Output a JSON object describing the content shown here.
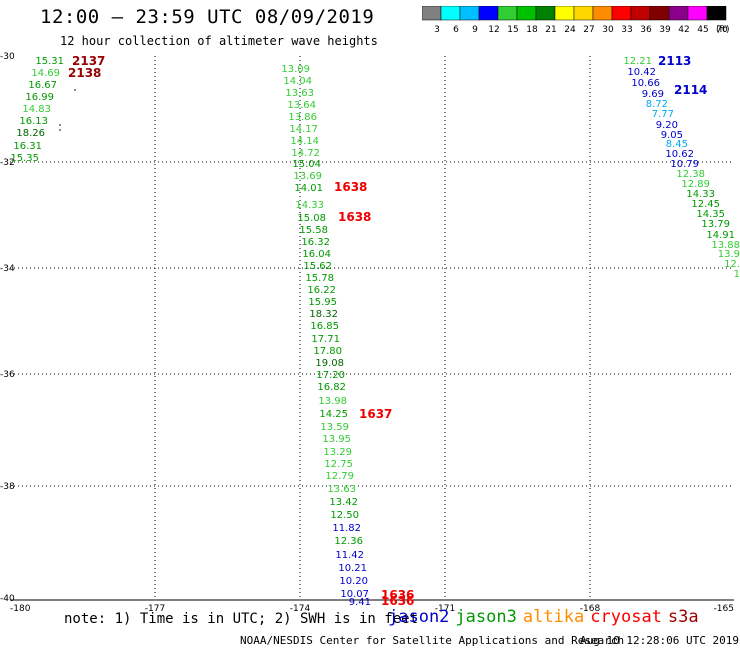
{
  "title": "12:00 — 23:59 UTC 08/09/2019",
  "subtitle": "12 hour collection of altimeter wave heights",
  "units_label": "(ft)",
  "colorbar": {
    "labels": [
      "3",
      "6",
      "9",
      "12",
      "15",
      "18",
      "21",
      "24",
      "27",
      "30",
      "33",
      "36",
      "39",
      "42",
      "45",
      "70"
    ],
    "colors": [
      "#808080",
      "#00ffff",
      "#00bfff",
      "#0000ff",
      "#32cd32",
      "#00c000",
      "#008000",
      "#ffff00",
      "#ffd700",
      "#ff8c00",
      "#ff0000",
      "#c00000",
      "#800000",
      "#8b008b",
      "#ff00ff",
      "#000000"
    ]
  },
  "axes": {
    "x_ticks": [
      "-180",
      "-177",
      "-174",
      "-171",
      "-168",
      "-165"
    ],
    "y_ticks": [
      "-30",
      "-32",
      "-34",
      "-36",
      "-38",
      "-40"
    ]
  },
  "tracks": [
    {
      "name": "track-left",
      "times": [
        "2137",
        "2138"
      ],
      "labels": [
        "15.31",
        "14.69",
        "16.67",
        "16.99",
        "14.83",
        "16.13",
        "18.26",
        "16.31",
        "15.35"
      ]
    },
    {
      "name": "track-center",
      "times": [
        "1638",
        "1638",
        "1637",
        "1636",
        "1636"
      ],
      "labels": [
        "13.09",
        "14.04",
        "13.63",
        "13.64",
        "13.86",
        "14.17",
        "14.14",
        "14.72",
        "15.04",
        "13.69",
        "14.01",
        "14.33",
        "15.08",
        "15.58",
        "16.32",
        "16.04",
        "15.62",
        "15.78",
        "16.22",
        "15.95",
        "18.32",
        "16.85",
        "17.71",
        "17.80",
        "19.08",
        "17.20",
        "16.82",
        "13.98",
        "14.25",
        "13.59",
        "13.95",
        "13.29",
        "12.75",
        "12.79",
        "13.63",
        "13.42",
        "12.50",
        "11.82",
        "12.36",
        "11.42",
        "10.21",
        "10.20",
        "10.07",
        "9.41"
      ]
    },
    {
      "name": "track-right",
      "times": [
        "2113",
        "2114"
      ],
      "labels": [
        "12.21",
        "10.42",
        "10.66",
        "9.69",
        "8.72",
        "7.77",
        "9.20",
        "9.05",
        "8.45",
        "10.62",
        "10.79",
        "12.38",
        "12.89",
        "14.33",
        "12.45",
        "14.35",
        "13.79",
        "14.91",
        "13.88",
        "13.9",
        "12.",
        "1"
      ]
    }
  ],
  "note": "note: 1) Time is in UTC; 2) SWH is in feet",
  "legend": [
    {
      "label": "jason2",
      "color": "#0000cc"
    },
    {
      "label": "jason3",
      "color": "#009900"
    },
    {
      "label": "altika",
      "color": "#ff8c00"
    },
    {
      "label": "cryosat",
      "color": "#ff0000"
    },
    {
      "label": "s3a",
      "color": "#990000"
    }
  ],
  "credit": "NOAA/NESDIS Center for Satellite Applications and Research",
  "timestamp": "Aug 10 12:28:06 UTC 2019"
}
